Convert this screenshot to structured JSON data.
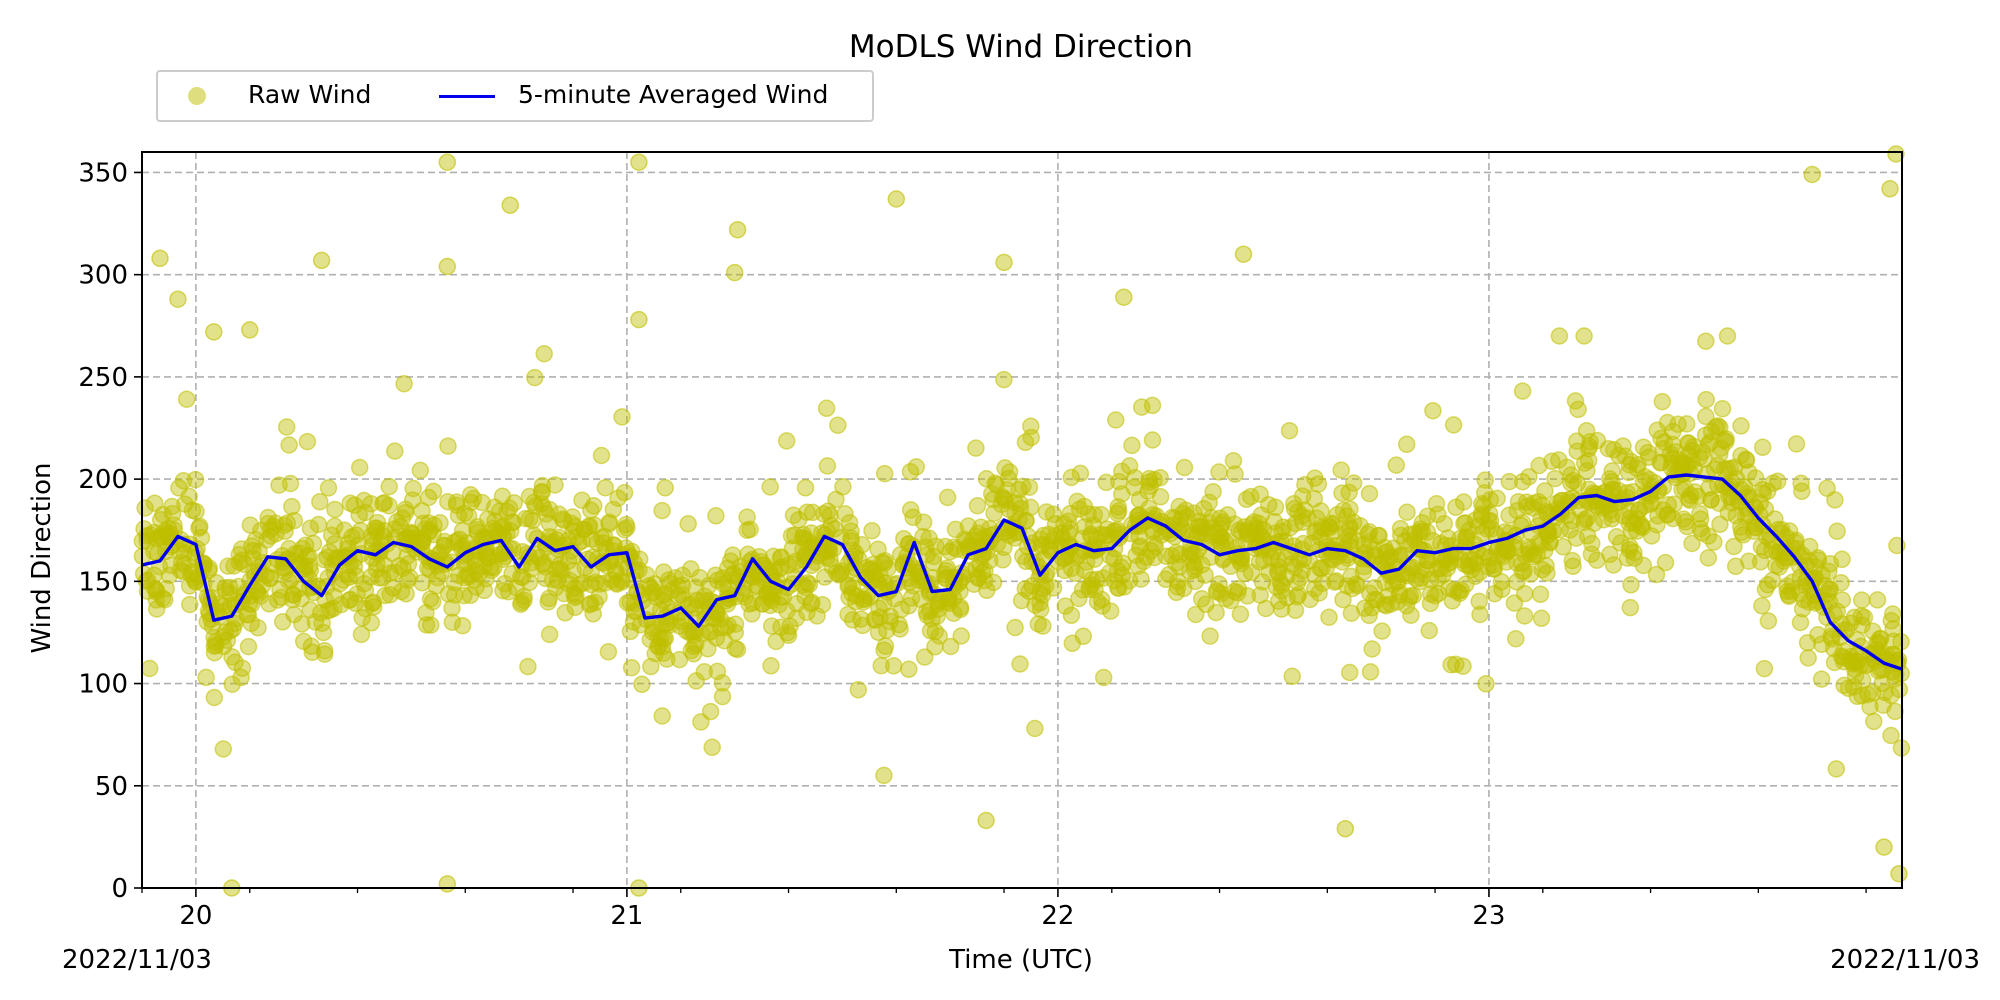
{
  "chart_data": {
    "type": "scatter",
    "title": "MoDLS Wind Direction",
    "xlabel": "Time (UTC)",
    "ylabel": "Wind Direction",
    "x_range": [
      "2022-11-19T21:00",
      "2022-11-23T23:00"
    ],
    "ylim": [
      0,
      360
    ],
    "x_major_ticks": [
      "20",
      "21",
      "22",
      "23"
    ],
    "x_major_tick_positions": [
      "2022-11-20T00:00",
      "2022-11-21T00:00",
      "2022-11-22T00:00",
      "2022-11-23T00:00"
    ],
    "x_minor_tick_hours": 6,
    "y_ticks": [
      0,
      50,
      100,
      150,
      200,
      250,
      300,
      350
    ],
    "x_start_label": "2022/11/03",
    "x_end_label": "2022/11/03",
    "grid": true,
    "legend_placement": "upper-left, above plot",
    "series": [
      {
        "name": "Raw Wind",
        "style": "markers",
        "color": "#bfbf00",
        "typical_range": [
          70,
          250
        ],
        "outliers": [
          {
            "x": "2022-11-19T22:00",
            "y": 308
          },
          {
            "x": "2022-11-19T23:00",
            "y": 288
          },
          {
            "x": "2022-11-20T01:00",
            "y": 272
          },
          {
            "x": "2022-11-20T03:00",
            "y": 273
          },
          {
            "x": "2022-11-20T07:00",
            "y": 307
          },
          {
            "x": "2022-11-20T14:00",
            "y": 355
          },
          {
            "x": "2022-11-20T14:00",
            "y": 304
          },
          {
            "x": "2022-11-20T17:30",
            "y": 334
          },
          {
            "x": "2022-11-21T00:40",
            "y": 355
          },
          {
            "x": "2022-11-21T00:40",
            "y": 278
          },
          {
            "x": "2022-11-21T06:10",
            "y": 322
          },
          {
            "x": "2022-11-21T06:00",
            "y": 301
          },
          {
            "x": "2022-11-21T15:00",
            "y": 337
          },
          {
            "x": "2022-11-21T21:00",
            "y": 306
          },
          {
            "x": "2022-11-22T03:40",
            "y": 289
          },
          {
            "x": "2022-11-22T10:20",
            "y": 310
          },
          {
            "x": "2022-11-23T18:00",
            "y": 349
          },
          {
            "x": "2022-11-23T22:40",
            "y": 359
          },
          {
            "x": "2022-11-23T22:20",
            "y": 342
          },
          {
            "x": "2022-11-20T02:00",
            "y": 0
          },
          {
            "x": "2022-11-20T14:00",
            "y": 2
          },
          {
            "x": "2022-11-21T00:40",
            "y": 0
          },
          {
            "x": "2022-11-21T20:00",
            "y": 33
          },
          {
            "x": "2022-11-22T16:00",
            "y": 29
          },
          {
            "x": "2022-11-23T22:00",
            "y": 20
          },
          {
            "x": "2022-11-23T22:50",
            "y": 7
          }
        ]
      },
      {
        "name": "5-minute Averaged Wind",
        "style": "line",
        "color": "#0000ee",
        "points": [
          [
            "2022-11-19T21:00",
            158
          ],
          [
            "2022-11-19T22:00",
            160
          ],
          [
            "2022-11-19T23:00",
            172
          ],
          [
            "2022-11-20T00:00",
            168
          ],
          [
            "2022-11-20T01:00",
            131
          ],
          [
            "2022-11-20T02:00",
            133
          ],
          [
            "2022-11-20T03:00",
            148
          ],
          [
            "2022-11-20T04:00",
            162
          ],
          [
            "2022-11-20T05:00",
            161
          ],
          [
            "2022-11-20T06:00",
            150
          ],
          [
            "2022-11-20T07:00",
            143
          ],
          [
            "2022-11-20T08:00",
            158
          ],
          [
            "2022-11-20T09:00",
            165
          ],
          [
            "2022-11-20T10:00",
            163
          ],
          [
            "2022-11-20T11:00",
            169
          ],
          [
            "2022-11-20T12:00",
            167
          ],
          [
            "2022-11-20T13:00",
            161
          ],
          [
            "2022-11-20T14:00",
            157
          ],
          [
            "2022-11-20T15:00",
            164
          ],
          [
            "2022-11-20T16:00",
            168
          ],
          [
            "2022-11-20T17:00",
            170
          ],
          [
            "2022-11-20T18:00",
            157
          ],
          [
            "2022-11-20T19:00",
            171
          ],
          [
            "2022-11-20T20:00",
            165
          ],
          [
            "2022-11-20T21:00",
            167
          ],
          [
            "2022-11-20T22:00",
            157
          ],
          [
            "2022-11-20T23:00",
            163
          ],
          [
            "2022-11-21T00:00",
            164
          ],
          [
            "2022-11-21T01:00",
            132
          ],
          [
            "2022-11-21T02:00",
            133
          ],
          [
            "2022-11-21T03:00",
            137
          ],
          [
            "2022-11-21T04:00",
            128
          ],
          [
            "2022-11-21T05:00",
            141
          ],
          [
            "2022-11-21T06:00",
            143
          ],
          [
            "2022-11-21T07:00",
            161
          ],
          [
            "2022-11-21T08:00",
            150
          ],
          [
            "2022-11-21T09:00",
            146
          ],
          [
            "2022-11-21T10:00",
            157
          ],
          [
            "2022-11-21T11:00",
            172
          ],
          [
            "2022-11-21T12:00",
            168
          ],
          [
            "2022-11-21T13:00",
            152
          ],
          [
            "2022-11-21T14:00",
            143
          ],
          [
            "2022-11-21T15:00",
            145
          ],
          [
            "2022-11-21T16:00",
            169
          ],
          [
            "2022-11-21T17:00",
            145
          ],
          [
            "2022-11-21T18:00",
            146
          ],
          [
            "2022-11-21T19:00",
            163
          ],
          [
            "2022-11-21T20:00",
            166
          ],
          [
            "2022-11-21T21:00",
            180
          ],
          [
            "2022-11-21T22:00",
            176
          ],
          [
            "2022-11-21T23:00",
            153
          ],
          [
            "2022-11-22T00:00",
            164
          ],
          [
            "2022-11-22T01:00",
            168
          ],
          [
            "2022-11-22T02:00",
            165
          ],
          [
            "2022-11-22T03:00",
            166
          ],
          [
            "2022-11-22T04:00",
            175
          ],
          [
            "2022-11-22T05:00",
            181
          ],
          [
            "2022-11-22T06:00",
            177
          ],
          [
            "2022-11-22T07:00",
            170
          ],
          [
            "2022-11-22T08:00",
            168
          ],
          [
            "2022-11-22T09:00",
            163
          ],
          [
            "2022-11-22T10:00",
            165
          ],
          [
            "2022-11-22T11:00",
            166
          ],
          [
            "2022-11-22T12:00",
            169
          ],
          [
            "2022-11-22T13:00",
            166
          ],
          [
            "2022-11-22T14:00",
            163
          ],
          [
            "2022-11-22T15:00",
            166
          ],
          [
            "2022-11-22T16:00",
            165
          ],
          [
            "2022-11-22T17:00",
            161
          ],
          [
            "2022-11-22T18:00",
            154
          ],
          [
            "2022-11-22T19:00",
            156
          ],
          [
            "2022-11-22T20:00",
            165
          ],
          [
            "2022-11-22T21:00",
            164
          ],
          [
            "2022-11-22T22:00",
            166
          ],
          [
            "2022-11-22T23:00",
            166
          ],
          [
            "2022-11-23T00:00",
            169
          ],
          [
            "2022-11-23T01:00",
            171
          ],
          [
            "2022-11-23T02:00",
            175
          ],
          [
            "2022-11-23T03:00",
            177
          ],
          [
            "2022-11-23T04:00",
            183
          ],
          [
            "2022-11-23T05:00",
            191
          ],
          [
            "2022-11-23T06:00",
            192
          ],
          [
            "2022-11-23T07:00",
            189
          ],
          [
            "2022-11-23T08:00",
            190
          ],
          [
            "2022-11-23T09:00",
            194
          ],
          [
            "2022-11-23T10:00",
            201
          ],
          [
            "2022-11-23T11:00",
            202
          ],
          [
            "2022-11-23T12:00",
            201
          ],
          [
            "2022-11-23T13:00",
            200
          ],
          [
            "2022-11-23T14:00",
            192
          ],
          [
            "2022-11-23T15:00",
            181
          ],
          [
            "2022-11-23T16:00",
            172
          ],
          [
            "2022-11-23T17:00",
            162
          ],
          [
            "2022-11-23T18:00",
            150
          ],
          [
            "2022-11-23T19:00",
            130
          ],
          [
            "2022-11-23T20:00",
            121
          ],
          [
            "2022-11-23T21:00",
            116
          ],
          [
            "2022-11-23T22:00",
            110
          ],
          [
            "2022-11-23T23:00",
            107
          ]
        ]
      }
    ]
  }
}
